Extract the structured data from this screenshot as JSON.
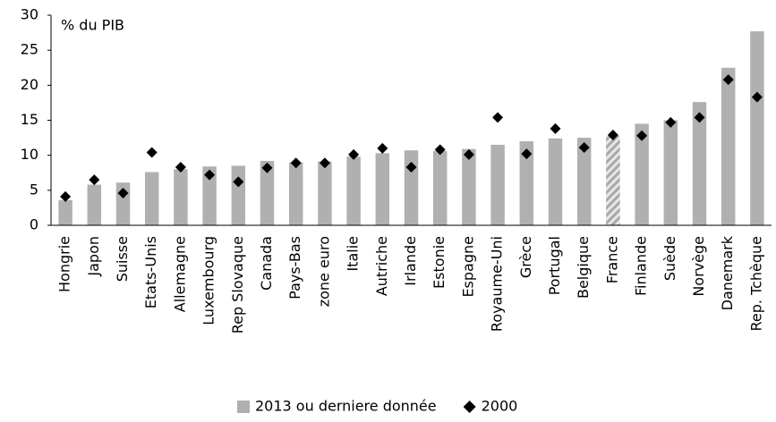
{
  "chart_data": {
    "type": "bar",
    "y_label": "% du PIB",
    "categories": [
      "Hongrie",
      "Japon",
      "Suisse",
      "Etats-Unis",
      "Allemagne",
      "Luxembourg",
      "Rep Slovaque",
      "Canada",
      "Pays-Bas",
      "zone euro",
      "Italie",
      "Autriche",
      "Irlande",
      "Estonie",
      "Espagne",
      "Royaume-Uni",
      "Grèce",
      "Portugal",
      "Belgique",
      "France",
      "Finlande",
      "Suède",
      "Norvège",
      "Danemark",
      "Rep. Tchèque"
    ],
    "series": [
      {
        "name": "2013 ou derniere donnée",
        "color": "#b0b0b0",
        "mark": "bar",
        "hatched": [
          "France"
        ],
        "values": [
          3.6,
          5.8,
          6.1,
          7.6,
          8.0,
          8.4,
          8.5,
          9.2,
          9.0,
          9.1,
          9.8,
          10.3,
          10.7,
          10.6,
          10.9,
          11.5,
          12.0,
          12.4,
          12.5,
          12.8,
          14.5,
          15.0,
          17.6,
          22.5,
          27.7
        ]
      },
      {
        "name": "2000",
        "color": "#000000",
        "mark": "diamond",
        "values": [
          4.1,
          6.5,
          4.6,
          10.4,
          8.3,
          7.2,
          6.2,
          8.2,
          8.9,
          8.9,
          10.1,
          11.0,
          8.3,
          10.8,
          10.1,
          15.4,
          10.2,
          13.8,
          11.1,
          12.9,
          12.8,
          14.7,
          15.4,
          20.8,
          18.3
        ]
      }
    ],
    "ylim": [
      0,
      30
    ],
    "yticks": [
      0,
      5,
      10,
      15,
      20,
      25,
      30
    ],
    "grid": false,
    "legend": "bottom"
  }
}
